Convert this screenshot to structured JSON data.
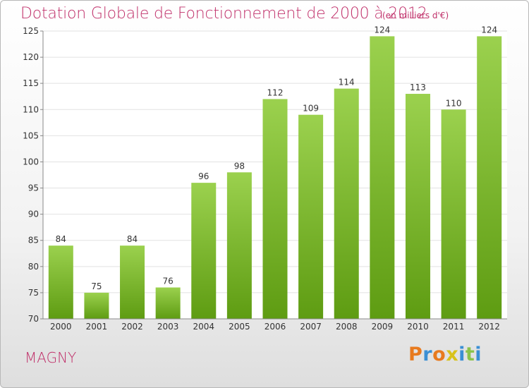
{
  "chart_data": {
    "type": "bar",
    "title": "Dotation Globale de Fonctionnement de 2000 à 2012",
    "subtitle": "(en milliers d'€)",
    "categories": [
      "2000",
      "2001",
      "2002",
      "2003",
      "2004",
      "2005",
      "2006",
      "2007",
      "2008",
      "2009",
      "2010",
      "2011",
      "2012"
    ],
    "values": [
      84,
      75,
      84,
      76,
      96,
      98,
      112,
      109,
      114,
      124,
      113,
      110,
      124
    ],
    "ylim": [
      70,
      125
    ],
    "yticks": [
      70,
      75,
      80,
      85,
      90,
      95,
      100,
      105,
      110,
      115,
      120,
      125
    ],
    "xlabel": "",
    "ylabel": "",
    "grid": true,
    "colors": {
      "bar_top": "#9bd14e",
      "bar_bottom": "#5e9c12",
      "grid": "#e2e2e2",
      "title": "#c0306a"
    }
  },
  "commune": "MAGNY",
  "logo": {
    "letters": [
      "P",
      "r",
      "o",
      "x",
      "i",
      "t",
      "i"
    ],
    "colors": [
      "#e87a1e",
      "#3a8fd4",
      "#e87a1e",
      "#d8c21a",
      "#3a8fd4",
      "#8bc34a",
      "#3a8fd4"
    ]
  }
}
